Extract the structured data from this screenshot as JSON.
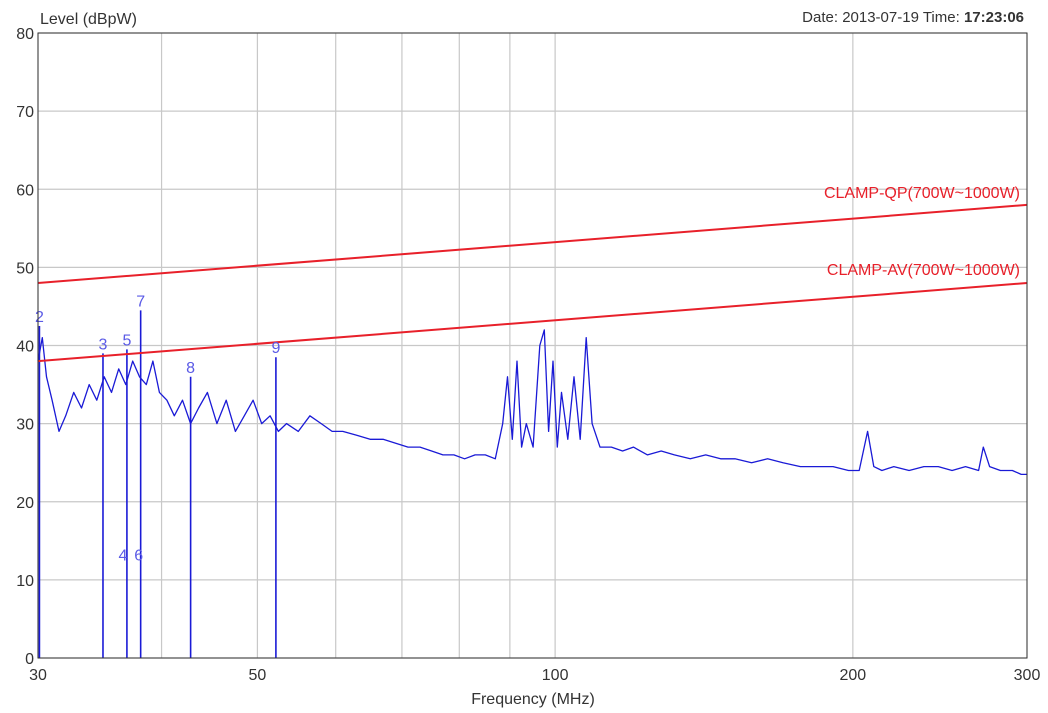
{
  "header": {
    "date_label": "Date:",
    "date_value": "2013-07-19",
    "time_label": "Time:",
    "time_value": "17:23:06"
  },
  "colors": {
    "trace": "#1a1ad6",
    "limit": "#e8202a",
    "marker": "#5a5ae6",
    "grid": "#c8c8c8",
    "axis": "#333333"
  },
  "chart_data": {
    "type": "line",
    "title": "",
    "ylabel": "Level (dBpW)",
    "xlabel": "Frequency (MHz)",
    "x_scale": "log",
    "xlim": [
      30,
      300
    ],
    "ylim": [
      0,
      80
    ],
    "x_ticks": [
      30,
      50,
      100,
      200,
      300
    ],
    "x_grid": [
      30,
      40,
      50,
      60,
      70,
      80,
      90,
      100,
      200,
      300
    ],
    "y_ticks": [
      0,
      10,
      20,
      30,
      40,
      50,
      60,
      70,
      80
    ],
    "grid": true,
    "limit_lines": [
      {
        "name": "CLAMP-QP(700W~1000W)",
        "x": [
          30,
          300
        ],
        "y": [
          48,
          58
        ]
      },
      {
        "name": "CLAMP-AV(700W~1000W)",
        "x": [
          30,
          300
        ],
        "y": [
          38,
          48
        ]
      }
    ],
    "series": [
      {
        "x": [
          30,
          30.3,
          30.6,
          31,
          31.5,
          32,
          32.6,
          33.2,
          33.8,
          34.4,
          35,
          35.6,
          36.2,
          36.8,
          37.4,
          38,
          38.6,
          39.2,
          39.8,
          40.5,
          41.2,
          42,
          42.8,
          43.6,
          44.5,
          45.5,
          46.5,
          47.5,
          48.5,
          49.5,
          50.5,
          51.5,
          52.5,
          53.5,
          55,
          56.5,
          58,
          59.5,
          61,
          63,
          65,
          67,
          69,
          71,
          73,
          75,
          77,
          79,
          81,
          83,
          85,
          87,
          88.5,
          89.5,
          90.5,
          91.5,
          92.5,
          93.5,
          95,
          96.5,
          97.5,
          98.5,
          99.5,
          100.5,
          101.5,
          103,
          104.5,
          106,
          107.5,
          109,
          111,
          114,
          117,
          120,
          124,
          128,
          132,
          137,
          142,
          147,
          152,
          158,
          164,
          170,
          177,
          184,
          191,
          198,
          203,
          207,
          210,
          214,
          220,
          228,
          236,
          244,
          252,
          260,
          268,
          271,
          275,
          282,
          290,
          296,
          300
        ],
        "y": [
          38,
          41,
          36,
          33,
          29,
          31,
          34,
          32,
          35,
          33,
          36,
          34,
          37,
          35,
          38,
          36,
          35,
          38,
          34,
          33,
          31,
          33,
          30,
          32,
          34,
          30,
          33,
          29,
          31,
          33,
          30,
          31,
          29,
          30,
          29,
          31,
          30,
          29,
          29,
          28.5,
          28,
          28,
          27.5,
          27,
          27,
          26.5,
          26,
          26,
          25.5,
          26,
          26,
          25.5,
          30,
          36,
          28,
          38,
          27,
          30,
          27,
          40,
          42,
          29,
          38,
          27,
          34,
          28,
          36,
          28,
          41,
          30,
          27,
          27,
          26.5,
          27,
          26,
          26.5,
          26,
          25.5,
          26,
          25.5,
          25.5,
          25,
          25.5,
          25,
          24.5,
          24.5,
          24.5,
          24,
          24,
          29,
          24.5,
          24,
          24.5,
          24,
          24.5,
          24.5,
          24,
          24.5,
          24,
          27,
          24.5,
          24,
          24,
          23.5,
          23.5
        ]
      }
    ],
    "markers": [
      {
        "label": "2",
        "x": 30.1,
        "y": 42.5
      },
      {
        "label": "3",
        "x": 34.9,
        "y": 39
      },
      {
        "label": "5",
        "x": 36.9,
        "y": 39.5
      },
      {
        "label": "7",
        "x": 38.1,
        "y": 44.5
      },
      {
        "label": "8",
        "x": 42.8,
        "y": 36
      },
      {
        "label": "9",
        "x": 52.2,
        "y": 38.5
      },
      {
        "label": "4",
        "x": 36.9,
        "y": 12
      },
      {
        "label": "6",
        "x": 38.1,
        "y": 12
      }
    ],
    "spikes": [
      {
        "x": 30.1,
        "y": 42.5
      },
      {
        "x": 34.9,
        "y": 39
      },
      {
        "x": 36.9,
        "y": 39.5
      },
      {
        "x": 38.1,
        "y": 44.5
      },
      {
        "x": 42.8,
        "y": 36
      },
      {
        "x": 52.2,
        "y": 38.5
      }
    ]
  }
}
